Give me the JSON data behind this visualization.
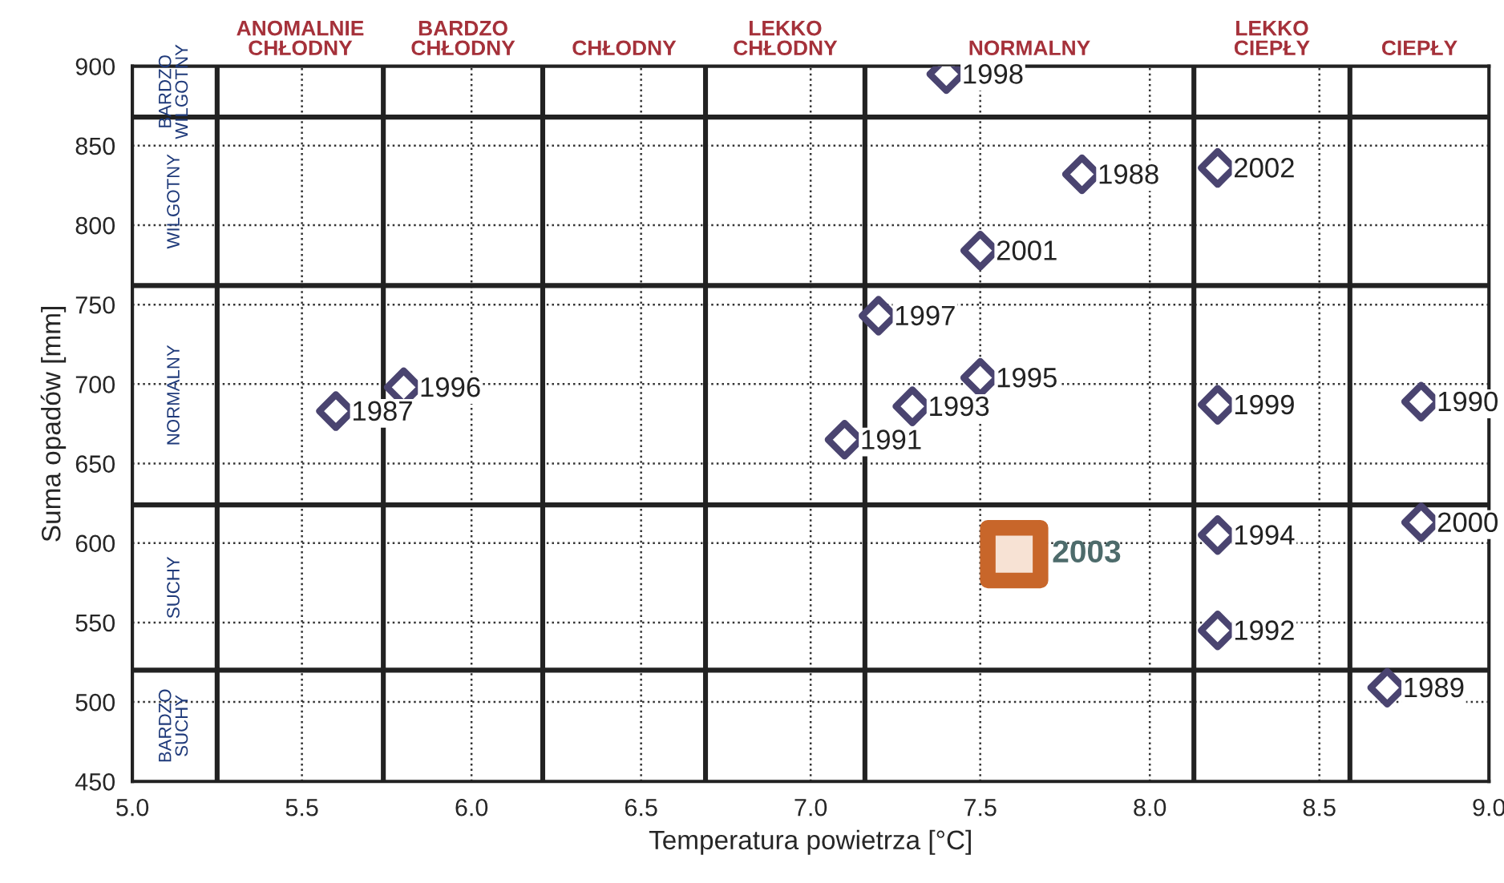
{
  "chart_data": {
    "type": "scatter",
    "xlabel": "Temperatura powietrza [°C]",
    "ylabel": "Suma opadów [mm]",
    "xlim": [
      5.0,
      9.0
    ],
    "ylim": [
      450,
      900
    ],
    "xticks": [
      {
        "value": 5.0,
        "label": "5.0"
      },
      {
        "value": 5.5,
        "label": "5.5"
      },
      {
        "value": 6.0,
        "label": "6.0"
      },
      {
        "value": 6.5,
        "label": "6.5"
      },
      {
        "value": 7.0,
        "label": "7.0"
      },
      {
        "value": 7.5,
        "label": "7.5"
      },
      {
        "value": 8.0,
        "label": "8.0"
      },
      {
        "value": 8.5,
        "label": "8.5"
      },
      {
        "value": 9.0,
        "label": "9.0"
      }
    ],
    "yticks": [
      450,
      500,
      550,
      600,
      650,
      700,
      750,
      800,
      850,
      900
    ],
    "grid": true,
    "series": [
      {
        "color": "#4a4470",
        "marker": "diamond",
        "x": [
          5.6,
          5.8,
          7.4,
          7.8,
          8.2,
          7.5,
          7.2,
          7.5,
          7.3,
          7.1,
          8.2,
          8.8,
          8.8,
          8.2,
          8.2,
          8.7
        ],
        "values": [
          683,
          698,
          895,
          832,
          836,
          784,
          743,
          704,
          686,
          665,
          687,
          689,
          613,
          605,
          545,
          509
        ]
      },
      {
        "color": "#c8662a",
        "marker": "square",
        "x": [
          7.6
        ],
        "values": [
          593
        ]
      }
    ],
    "ref_lines": [
      {
        "axis": "x",
        "value": 5.25
      },
      {
        "axis": "x",
        "value": 5.74
      },
      {
        "axis": "x",
        "value": 6.21
      },
      {
        "axis": "x",
        "value": 6.69
      },
      {
        "axis": "x",
        "value": 7.16
      },
      {
        "axis": "x",
        "value": 8.13
      },
      {
        "axis": "x",
        "value": 8.59
      },
      {
        "axis": "y",
        "value": 868
      },
      {
        "axis": "y",
        "value": 762
      },
      {
        "axis": "y",
        "value": 624
      },
      {
        "axis": "y",
        "value": 520
      }
    ],
    "annotations": [
      "ANOMALNIE\nCHŁODNY",
      "BARDZO\nCHŁODNY",
      "CHŁODNY",
      "LEKKO\nCHŁODNY",
      "NORMALNY",
      "LEKKO\nCIEPŁY",
      "CIEPŁY",
      "BARDZO\nWILGOTNY",
      "WILGOTNY",
      "NORMALNY",
      "SUCHY",
      "BARDZO\nSUCHY",
      {
        "text": "1987",
        "x": 5.6,
        "y": 683
      },
      {
        "text": "1996",
        "x": 5.8,
        "y": 698
      },
      {
        "text": "1998",
        "x": 7.4,
        "y": 895
      },
      {
        "text": "1988",
        "x": 7.8,
        "y": 832
      },
      {
        "text": "2002",
        "x": 8.2,
        "y": 836
      },
      {
        "text": "2001",
        "x": 7.5,
        "y": 784
      },
      {
        "text": "1997",
        "x": 7.2,
        "y": 743
      },
      {
        "text": "1995",
        "x": 7.5,
        "y": 704
      },
      {
        "text": "1993",
        "x": 7.3,
        "y": 686
      },
      {
        "text": "1991",
        "x": 7.1,
        "y": 665
      },
      {
        "text": "1999",
        "x": 8.2,
        "y": 687
      },
      {
        "text": "1990",
        "x": 8.8,
        "y": 689
      },
      {
        "text": "2000",
        "x": 8.8,
        "y": 613
      },
      {
        "text": "1994",
        "x": 8.2,
        "y": 605
      },
      {
        "text": "1992",
        "x": 8.2,
        "y": 545
      },
      {
        "text": "1989",
        "x": 8.7,
        "y": 509
      },
      {
        "text": "2003",
        "x": 7.6,
        "y": 593
      }
    ]
  }
}
